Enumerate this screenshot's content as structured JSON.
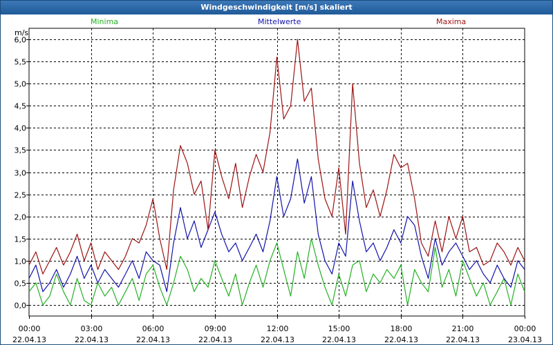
{
  "window": {
    "title": "Windgeschwindigkeit [m/s] skaliert"
  },
  "chart_data": {
    "type": "line",
    "title": "Windgeschwindigkeit [m/s] skaliert",
    "ylabel": "m/s",
    "ylim": [
      -0.25,
      6.25
    ],
    "xlim": [
      0,
      24
    ],
    "y_ticks": [
      "0,0",
      "0,5",
      "1,0",
      "1,5",
      "2,0",
      "2,5",
      "3,0",
      "3,5",
      "4,0",
      "4,5",
      "5,0",
      "5,5",
      "6,0"
    ],
    "y_tick_values": [
      0,
      0.5,
      1,
      1.5,
      2,
      2.5,
      3,
      3.5,
      4,
      4.5,
      5,
      5.5,
      6
    ],
    "x_ticks": [
      {
        "time": "00:00",
        "date": "22.04.13",
        "hour": 0
      },
      {
        "time": "03:00",
        "date": "22.04.13",
        "hour": 3
      },
      {
        "time": "06:00",
        "date": "22.04.13",
        "hour": 6
      },
      {
        "time": "09:00",
        "date": "22.04.13",
        "hour": 9
      },
      {
        "time": "12:00",
        "date": "22.04.13",
        "hour": 12
      },
      {
        "time": "15:00",
        "date": "22.04.13",
        "hour": 15
      },
      {
        "time": "18:00",
        "date": "22.04.13",
        "hour": 18
      },
      {
        "time": "21:00",
        "date": "22.04.13",
        "hour": 21
      },
      {
        "time": "00:00",
        "date": "23.04.13",
        "hour": 24
      }
    ],
    "grid": true,
    "legend_position": "top",
    "series": [
      {
        "name": "Minima",
        "color": "#22b022",
        "x": [
          0,
          0.33,
          0.67,
          1,
          1.33,
          1.67,
          2,
          2.33,
          2.67,
          3,
          3.33,
          3.67,
          4,
          4.33,
          4.67,
          5,
          5.33,
          5.67,
          6,
          6.33,
          6.67,
          7,
          7.33,
          7.67,
          8,
          8.33,
          8.67,
          9,
          9.33,
          9.67,
          10,
          10.33,
          10.67,
          11,
          11.33,
          11.67,
          12,
          12.33,
          12.67,
          13,
          13.33,
          13.67,
          14,
          14.33,
          14.67,
          15,
          15.33,
          15.67,
          16,
          16.33,
          16.67,
          17,
          17.33,
          17.67,
          18,
          18.33,
          18.67,
          19,
          19.33,
          19.67,
          20,
          20.33,
          20.67,
          21,
          21.33,
          21.67,
          22,
          22.33,
          22.67,
          23,
          23.33,
          23.67,
          24
        ],
        "values": [
          0.3,
          0.5,
          0.0,
          0.2,
          0.7,
          0.3,
          0.0,
          0.6,
          0.1,
          0.0,
          0.5,
          0.2,
          0.4,
          0.0,
          0.3,
          0.6,
          0.1,
          0.7,
          0.9,
          0.4,
          0.0,
          0.5,
          1.1,
          0.8,
          0.3,
          0.6,
          0.4,
          1.0,
          0.6,
          0.2,
          0.7,
          0.0,
          0.5,
          0.9,
          0.4,
          1.0,
          1.4,
          0.8,
          0.2,
          1.2,
          0.6,
          1.5,
          0.9,
          0.4,
          0.0,
          0.7,
          0.2,
          0.9,
          1.0,
          0.3,
          0.7,
          0.5,
          0.8,
          0.6,
          0.9,
          0.0,
          0.8,
          0.5,
          0.3,
          1.3,
          0.4,
          0.8,
          0.2,
          1.0,
          0.6,
          0.2,
          0.5,
          0.0,
          0.3,
          0.6,
          0.0,
          0.7,
          0.3
        ]
      },
      {
        "name": "Mittelwerte",
        "color": "#1111aa",
        "x": [
          0,
          0.33,
          0.67,
          1,
          1.33,
          1.67,
          2,
          2.33,
          2.67,
          3,
          3.33,
          3.67,
          4,
          4.33,
          4.67,
          5,
          5.33,
          5.67,
          6,
          6.33,
          6.67,
          7,
          7.33,
          7.67,
          8,
          8.33,
          8.67,
          9,
          9.33,
          9.67,
          10,
          10.33,
          10.67,
          11,
          11.33,
          11.67,
          12,
          12.33,
          12.67,
          13,
          13.33,
          13.67,
          14,
          14.33,
          14.67,
          15,
          15.33,
          15.67,
          16,
          16.33,
          16.67,
          17,
          17.33,
          17.67,
          18,
          18.33,
          18.67,
          19,
          19.33,
          19.67,
          20,
          20.33,
          20.67,
          21,
          21.33,
          21.67,
          22,
          22.33,
          22.67,
          23,
          23.33,
          23.67,
          24
        ],
        "values": [
          0.6,
          0.9,
          0.3,
          0.5,
          0.8,
          0.4,
          0.7,
          1.1,
          0.6,
          0.9,
          0.5,
          0.8,
          0.6,
          0.4,
          0.7,
          1.0,
          0.6,
          1.2,
          1.0,
          0.9,
          0.3,
          1.4,
          2.2,
          1.5,
          1.9,
          1.3,
          1.7,
          2.1,
          1.6,
          1.2,
          1.4,
          1.0,
          1.3,
          1.6,
          1.2,
          1.9,
          2.9,
          2.0,
          2.4,
          3.3,
          2.3,
          2.9,
          1.6,
          1.0,
          0.7,
          1.4,
          1.1,
          2.8,
          1.9,
          1.2,
          1.4,
          1.0,
          1.3,
          1.7,
          1.4,
          2.0,
          1.8,
          1.1,
          0.6,
          1.5,
          0.9,
          1.2,
          1.4,
          1.1,
          0.8,
          1.0,
          0.7,
          0.5,
          0.9,
          0.6,
          0.4,
          1.0,
          0.8
        ]
      },
      {
        "name": "Maxima",
        "color": "#9b1111",
        "x": [
          0,
          0.33,
          0.67,
          1,
          1.33,
          1.67,
          2,
          2.33,
          2.67,
          3,
          3.33,
          3.67,
          4,
          4.33,
          4.67,
          5,
          5.33,
          5.67,
          6,
          6.33,
          6.67,
          7,
          7.33,
          7.67,
          8,
          8.33,
          8.67,
          9,
          9.33,
          9.67,
          10,
          10.33,
          10.67,
          11,
          11.33,
          11.67,
          12,
          12.33,
          12.67,
          13,
          13.33,
          13.67,
          14,
          14.33,
          14.67,
          15,
          15.33,
          15.67,
          16,
          16.33,
          16.67,
          17,
          17.33,
          17.67,
          18,
          18.33,
          18.67,
          19,
          19.33,
          19.67,
          20,
          20.33,
          20.67,
          21,
          21.33,
          21.67,
          22,
          22.33,
          22.67,
          23,
          23.33,
          23.67,
          24
        ],
        "values": [
          0.9,
          1.2,
          0.7,
          1.0,
          1.3,
          0.9,
          1.2,
          1.6,
          1.0,
          1.4,
          0.8,
          1.2,
          1.0,
          0.8,
          1.1,
          1.5,
          1.4,
          1.8,
          2.4,
          1.5,
          0.8,
          2.6,
          3.6,
          3.2,
          2.5,
          2.8,
          1.7,
          3.5,
          2.9,
          2.4,
          3.2,
          2.2,
          2.9,
          3.4,
          3.0,
          3.9,
          5.6,
          4.2,
          4.5,
          6.0,
          4.6,
          4.9,
          3.3,
          2.4,
          2.0,
          3.1,
          1.6,
          5.0,
          3.2,
          2.2,
          2.6,
          2.0,
          2.6,
          3.4,
          3.1,
          3.2,
          2.4,
          1.4,
          1.1,
          1.9,
          1.2,
          2.0,
          1.5,
          2.0,
          1.2,
          1.3,
          0.9,
          1.0,
          1.4,
          1.2,
          0.9,
          1.3,
          1.0
        ]
      }
    ]
  }
}
